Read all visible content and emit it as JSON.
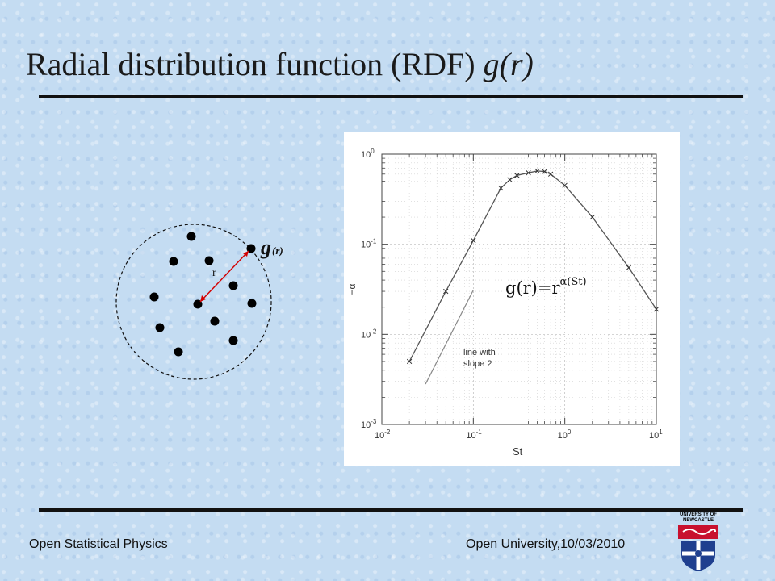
{
  "slide": {
    "title_main": "Radial distribution function (RDF) ",
    "title_italic": "g(r)"
  },
  "diagram": {
    "r_label": "r",
    "g_label": "g",
    "g_sub": "(r)"
  },
  "footer": {
    "left": "Open Statistical Physics",
    "right": "Open University,10/03/2010"
  },
  "logo": {
    "line1": "UNIVERSITY OF",
    "line2": "NEWCASTLE"
  },
  "chart_data": {
    "type": "line",
    "xscale": "log",
    "yscale": "log",
    "xlim": [
      0.01,
      10
    ],
    "ylim": [
      0.001,
      1
    ],
    "xlabel": "St",
    "ylabel": "−α",
    "x_ticks": [
      {
        "value": 0.01,
        "base": "10",
        "exp": "-2"
      },
      {
        "value": 0.1,
        "base": "10",
        "exp": "-1"
      },
      {
        "value": 1,
        "base": "10",
        "exp": "0"
      },
      {
        "value": 10,
        "base": "10",
        "exp": "1"
      }
    ],
    "y_ticks": [
      {
        "value": 0.001,
        "base": "10",
        "exp": "-3"
      },
      {
        "value": 0.01,
        "base": "10",
        "exp": "-2"
      },
      {
        "value": 0.1,
        "base": "10",
        "exp": "-1"
      },
      {
        "value": 1,
        "base": "10",
        "exp": "0"
      }
    ],
    "series": [
      {
        "marker": "x",
        "color": "#555555",
        "x": [
          0.02,
          0.05,
          0.1,
          0.2,
          0.25,
          0.3,
          0.4,
          0.5,
          0.6,
          0.7,
          1.0,
          2.0,
          5.0,
          10.0
        ],
        "y": [
          0.005,
          0.03,
          0.11,
          0.42,
          0.52,
          0.58,
          0.62,
          0.65,
          0.64,
          0.6,
          0.45,
          0.2,
          0.055,
          0.019
        ]
      }
    ],
    "reference_line": {
      "label_line1": "line with",
      "label_line2": "slope 2",
      "x": [
        0.03,
        0.1
      ],
      "y": [
        0.0028,
        0.031
      ],
      "color": "#888888"
    },
    "equation": {
      "lhs": "g(r)",
      "eq": "=",
      "base": "r",
      "exponent": "α(St)"
    },
    "grid": true,
    "legend": false
  }
}
